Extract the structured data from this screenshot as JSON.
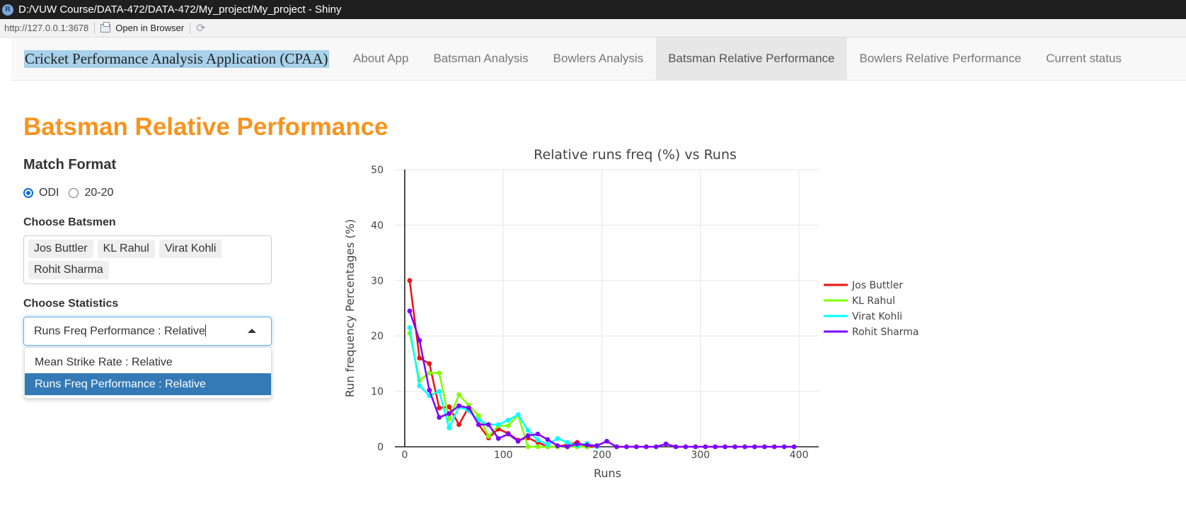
{
  "window": {
    "title": "D:/VUW Course/DATA-472/DATA-472/My_project/My_project - Shiny",
    "logo": "R"
  },
  "viewer": {
    "url": "http://127.0.0.1:3678",
    "open_label": "Open in Browser",
    "refresh_icon": "refresh-icon"
  },
  "navbar": {
    "brand": "Cricket Performance Analysis Application (CPAA)",
    "items": [
      {
        "label": "About App"
      },
      {
        "label": "Batsman Analysis"
      },
      {
        "label": "Bowlers Analysis"
      },
      {
        "label": "Batsman Relative Performance",
        "active": true
      },
      {
        "label": "Bowlers Relative Performance"
      },
      {
        "label": "Current status"
      }
    ]
  },
  "page": {
    "title": "Batsman Relative Performance"
  },
  "sidebar": {
    "format_heading": "Match Format",
    "formats": [
      {
        "label": "ODI",
        "checked": true
      },
      {
        "label": "20-20",
        "checked": false
      }
    ],
    "batsmen_label": "Choose Batsmen",
    "batsmen": [
      "Jos Buttler",
      "KL Rahul",
      "Virat Kohli",
      "Rohit Sharma"
    ],
    "stats_label": "Choose Statistics",
    "stats_value": "Runs Freq Performance : Relative",
    "stats_options": [
      "Mean Strike Rate : Relative",
      "Runs Freq Performance : Relative"
    ],
    "stats_selected_index": 1
  },
  "colors": {
    "accent": "#f7931e",
    "selected": "#337ab7",
    "brand_highlight": "#a8d1ea"
  },
  "chart_data": {
    "type": "line",
    "title": "Relative runs freq (%) vs Runs",
    "xlabel": "Runs",
    "ylabel": "Run frequency Percentages (%)",
    "xlim": [
      -10,
      420
    ],
    "ylim": [
      0,
      50
    ],
    "xticks": [
      0,
      100,
      200,
      300,
      400
    ],
    "yticks": [
      0,
      10,
      20,
      30,
      40,
      50
    ],
    "grid": true,
    "legend": "right",
    "series": [
      {
        "name": "Jos Buttler",
        "color": "#ee1111",
        "x": [
          5,
          15,
          25,
          35,
          45,
          55,
          65,
          75,
          85,
          95,
          105,
          115,
          125,
          135,
          145,
          155,
          165,
          175,
          185,
          195
        ],
        "y": [
          30,
          16,
          15,
          7,
          7.2,
          4,
          7.2,
          4,
          1.6,
          3.2,
          2.4,
          1.2,
          1.6,
          0.8,
          0,
          0,
          0.4,
          0.8,
          0,
          0
        ]
      },
      {
        "name": "KL Rahul",
        "color": "#7fff00",
        "x": [
          5,
          15,
          25,
          35,
          45,
          55,
          65,
          75,
          85,
          95,
          105,
          115,
          125,
          135,
          145,
          155,
          165,
          175,
          185
        ],
        "y": [
          20.5,
          12,
          13.3,
          13.3,
          5,
          9.4,
          7.5,
          5.6,
          1.9,
          3.8,
          3.8,
          5.7,
          0,
          0,
          0,
          0,
          0,
          0,
          0
        ]
      },
      {
        "name": "Virat Kohli",
        "color": "#00ffff",
        "x": [
          5,
          15,
          25,
          35,
          45,
          55,
          65,
          75,
          85,
          95,
          105,
          115,
          125,
          135,
          145,
          155,
          165,
          175,
          185,
          195
        ],
        "y": [
          21.5,
          11,
          9.2,
          10,
          3.4,
          7.2,
          6.5,
          4.8,
          4,
          4,
          4.8,
          5.8,
          3,
          1.2,
          0.4,
          1.5,
          0.8,
          0.2,
          0.6,
          0
        ]
      },
      {
        "name": "Rohit Sharma",
        "color": "#7f00ff",
        "x": [
          5,
          15,
          25,
          35,
          45,
          55,
          65,
          75,
          85,
          95,
          105,
          115,
          125,
          135,
          145,
          155,
          165,
          175,
          185,
          195,
          205,
          215,
          225,
          235,
          245,
          255,
          265,
          275,
          285,
          295,
          305,
          315,
          325,
          335,
          345,
          355,
          365,
          375,
          385,
          395
        ],
        "y": [
          24.5,
          19.2,
          10.2,
          5.3,
          6,
          7.4,
          7,
          4,
          4,
          1.5,
          2.3,
          1,
          2,
          2.3,
          1.3,
          0.2,
          0,
          0.5,
          0.3,
          0.2,
          1,
          0,
          0,
          0,
          0,
          0,
          0.5,
          0,
          0,
          0,
          0,
          0,
          0,
          0,
          0,
          0,
          0,
          0,
          0,
          0
        ]
      }
    ]
  }
}
